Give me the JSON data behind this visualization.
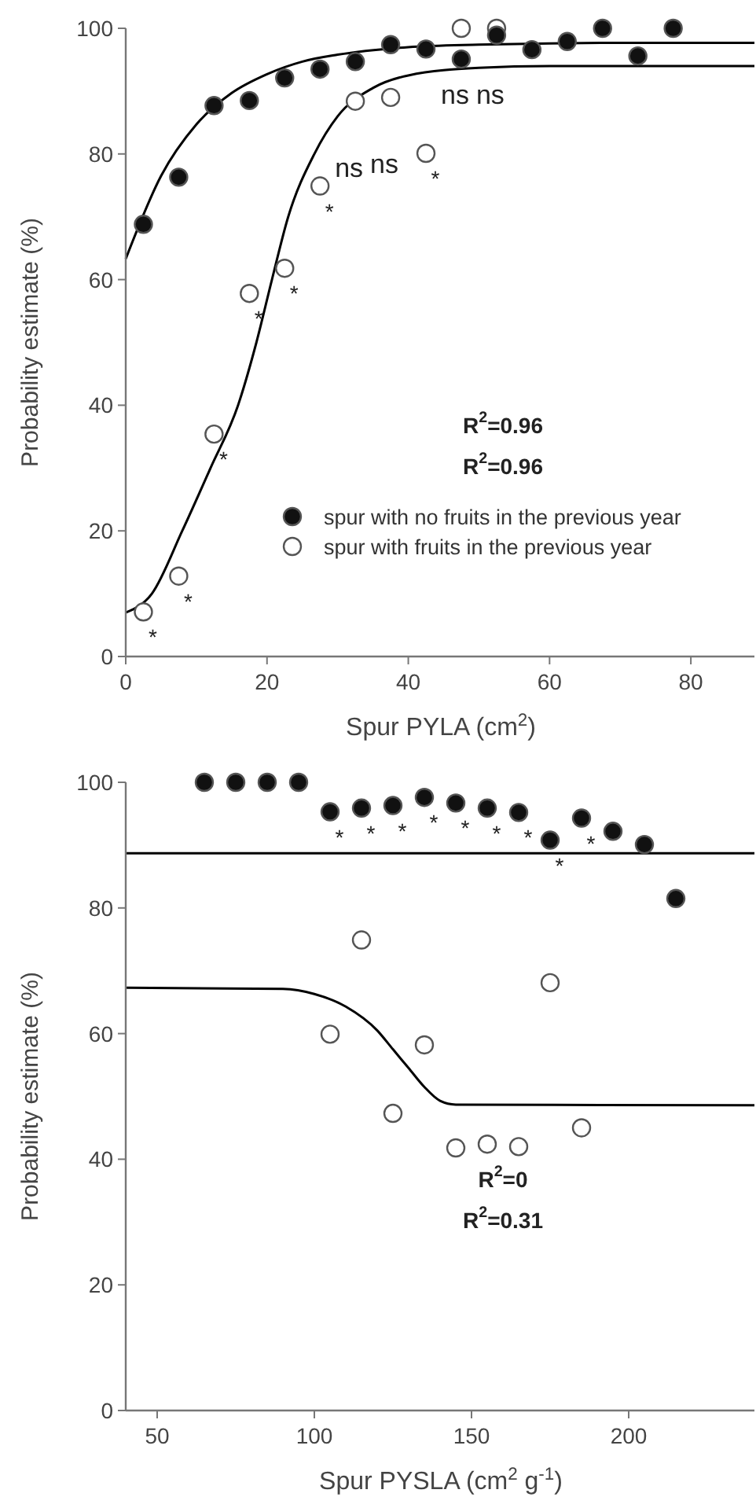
{
  "chart_data": [
    {
      "type": "scatter",
      "xlabel": "Spur PYLA (cm$^{2}$)",
      "ylabel": "Probability estimate (%)",
      "xlim": [
        0,
        89
      ],
      "ylim": [
        0,
        100
      ],
      "xticks": [
        0,
        20,
        40,
        60,
        80
      ],
      "yticks": [
        0,
        20,
        40,
        60,
        80,
        100
      ],
      "marker": "circle",
      "legend": "bottom right",
      "series": [
        {
          "name": "spur with no fruits in the previous year",
          "color": "#111111",
          "x": [
            2.5,
            7.5,
            12.5,
            17.5,
            22.5,
            27.5,
            32.5,
            37.5,
            42.5,
            47.5,
            52.5,
            57.5,
            62.5,
            67.5,
            72.5,
            77.5
          ],
          "values": [
            68.8,
            76.3,
            87.7,
            88.5,
            92.1,
            93.5,
            94.7,
            97.4,
            96.7,
            95.1,
            98.9,
            96.6,
            97.9,
            100,
            95.6,
            100
          ]
        },
        {
          "name": "spur with fruits in the previous year",
          "color": "#ffffff",
          "x": [
            2.5,
            7.5,
            12.5,
            17.5,
            22.5,
            27.5,
            32.5,
            37.5,
            42.5,
            47.5,
            52.5
          ],
          "values": [
            7.1,
            12.8,
            35.4,
            57.8,
            61.8,
            74.9,
            88.4,
            89,
            80.1,
            100,
            100
          ]
        },
        {
          "type": "line",
          "marker": "none",
          "color": "#000000",
          "x": [
            0,
            5,
            10,
            15,
            20,
            25,
            30,
            40,
            50,
            60,
            70,
            89
          ],
          "values": [
            63.3,
            76.5,
            84.7,
            89.7,
            92.7,
            94.7,
            95.8,
            97,
            97.4,
            97.6,
            97.7,
            97.7
          ]
        },
        {
          "type": "line",
          "marker": "none",
          "color": "#000000",
          "x": [
            0,
            3.7,
            8,
            12,
            15.9,
            18.5,
            20.7,
            23,
            26.7,
            30,
            35,
            40,
            50,
            60,
            89
          ],
          "values": [
            7,
            10,
            20,
            30,
            40,
            50,
            60,
            70,
            80,
            86,
            90.5,
            92.5,
            93.7,
            94,
            94
          ]
        }
      ],
      "annotations": [
        "R$^{2}$=0.96",
        "R$^{2}$=0.96",
        {
          "text": "ns",
          "x": 32.5,
          "y": 88.4
        },
        {
          "text": "ns",
          "x": 37.5,
          "y": 89
        },
        {
          "text": "ns",
          "x": 47.5,
          "y": 100
        },
        {
          "text": "ns",
          "x": 52.5,
          "y": 100
        },
        {
          "text": "*",
          "x": 2.5,
          "y": 7.1
        },
        {
          "text": "*",
          "x": 7.5,
          "y": 12.8
        },
        {
          "text": "*",
          "x": 12.5,
          "y": 35.4
        },
        {
          "text": "*",
          "x": 17.5,
          "y": 57.8
        },
        {
          "text": "*",
          "x": 22.5,
          "y": 61.8
        },
        {
          "text": "*",
          "x": 27.5,
          "y": 74.9
        },
        {
          "text": "*",
          "x": 42.5,
          "y": 80.1
        }
      ]
    },
    {
      "type": "scatter",
      "xlabel": "Spur PYSLA (cm$^{2}$ g$^{-1}$)",
      "ylabel": "Probability estimate (%)",
      "xlim": [
        40,
        240
      ],
      "ylim": [
        0,
        100
      ],
      "xticks": [
        50,
        100,
        150,
        200
      ],
      "yticks": [
        0,
        20,
        40,
        60,
        80,
        100
      ],
      "marker": "circle",
      "series": [
        {
          "color": "#111111",
          "x": [
            65,
            75,
            85,
            95,
            105,
            115,
            125,
            135,
            145,
            155,
            165,
            175,
            185,
            195,
            205,
            215
          ],
          "values": [
            100,
            100,
            100,
            100,
            95.3,
            95.9,
            96.3,
            97.6,
            96.7,
            95.9,
            95.2,
            90.8,
            94.3,
            92.2,
            90.1,
            81.5
          ]
        },
        {
          "color": "#ffffff",
          "x": [
            105,
            115,
            125,
            135,
            145,
            155,
            165,
            175,
            185
          ],
          "values": [
            59.9,
            74.9,
            47.3,
            58.2,
            41.8,
            42.4,
            42,
            68.1,
            45
          ]
        },
        {
          "type": "line",
          "marker": "none",
          "color": "#000000",
          "x": [
            40,
            240
          ],
          "values": [
            88.7,
            88.7
          ]
        },
        {
          "type": "line",
          "marker": "none",
          "color": "#000000",
          "x": [
            40,
            90,
            100,
            110,
            120,
            125,
            130,
            135,
            140,
            145,
            240
          ],
          "values": [
            67.3,
            67.1,
            66.3,
            64.3,
            60.5,
            57.5,
            54.5,
            51.5,
            49.3,
            48.7,
            48.6
          ]
        }
      ],
      "annotations": [
        "R$^{2}$=0",
        "R$^{2}$=0.31",
        {
          "text": "*",
          "x": 105,
          "y": 95.3
        },
        {
          "text": "*",
          "x": 115,
          "y": 95.9
        },
        {
          "text": "*",
          "x": 125,
          "y": 96.3
        },
        {
          "text": "*",
          "x": 135,
          "y": 97.6
        },
        {
          "text": "*",
          "x": 145,
          "y": 96.7
        },
        {
          "text": "*",
          "x": 155,
          "y": 95.9
        },
        {
          "text": "*",
          "x": 165,
          "y": 95.2
        },
        {
          "text": "*",
          "x": 175,
          "y": 90.8
        },
        {
          "text": "*",
          "x": 185,
          "y": 94.3
        }
      ]
    }
  ]
}
